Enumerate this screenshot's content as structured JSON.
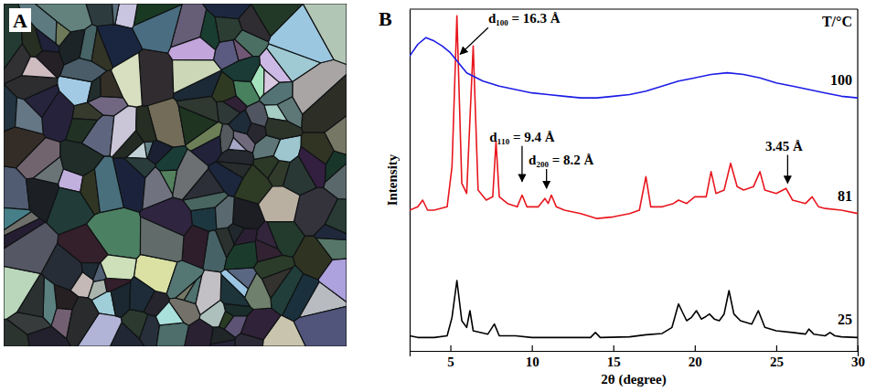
{
  "panel_a": {
    "label": "A"
  },
  "chart_data": {
    "type": "line",
    "label": "B",
    "x_label": "2θ (degree)",
    "y_label": "Intensity",
    "legend_title": "T/°C",
    "xlim": [
      2.5,
      30
    ],
    "xticks": [
      5,
      10,
      15,
      20,
      25,
      30
    ],
    "ylim": [
      0,
      102
    ],
    "tick_labels": "x",
    "series": [
      {
        "name": "25",
        "color": "#000000",
        "x": [
          2.5,
          3,
          4,
          4.8,
          5.1,
          5.4,
          5.7,
          6.0,
          6.2,
          6.4,
          7.3,
          7.7,
          8.0,
          9,
          10,
          12,
          13.6,
          13.9,
          14.2,
          16,
          17,
          18,
          18.6,
          19,
          19.2,
          19.5,
          19.8,
          20.1,
          20.4,
          20.6,
          20.9,
          21.2,
          21.5,
          21.8,
          22.1,
          22.4,
          22.8,
          23.5,
          23.9,
          24.3,
          25,
          26,
          26.8,
          27,
          27.3,
          28,
          28.3,
          28.6,
          29,
          30
        ],
        "values": [
          4.5,
          4,
          4,
          4.5,
          10,
          21,
          9,
          7,
          12,
          6,
          5,
          8,
          4.5,
          4.5,
          4,
          4,
          4,
          5.5,
          4,
          4.2,
          4.8,
          5.2,
          7,
          14,
          12,
          9,
          10,
          12,
          9.5,
          10,
          11,
          9.5,
          9,
          11,
          18,
          11,
          9,
          8,
          12,
          7,
          6,
          5.5,
          5,
          6.5,
          5,
          4.5,
          5.5,
          4.5,
          4.2,
          4
        ]
      },
      {
        "name": "81",
        "color": "#e8161e",
        "x": [
          2.5,
          3,
          3.3,
          3.6,
          4,
          4.8,
          5.1,
          5.4,
          5.7,
          6.0,
          6.4,
          6.7,
          7.2,
          7.6,
          7.8,
          8.0,
          8.5,
          9.1,
          9.4,
          9.7,
          10.4,
          10.8,
          11.0,
          11.2,
          11.5,
          12,
          13,
          14,
          15,
          16,
          16.6,
          17.0,
          17.3,
          18,
          18.7,
          19,
          19.5,
          20,
          20.7,
          21.0,
          21.3,
          21.8,
          22.2,
          22.6,
          23,
          23.6,
          24.0,
          24.3,
          25,
          25.6,
          26,
          26.8,
          27.2,
          27.6,
          28,
          29,
          30
        ],
        "values": [
          42,
          43,
          45,
          42,
          42,
          43,
          55,
          100,
          50,
          47,
          91,
          48,
          45,
          46,
          62.5,
          46,
          44,
          43,
          46.5,
          43,
          43,
          45.5,
          44,
          46.5,
          43,
          42,
          41,
          39.5,
          40,
          41,
          42,
          52,
          43,
          43,
          44,
          45,
          44,
          46,
          46,
          53.5,
          47,
          48,
          56,
          49,
          48,
          49,
          53.5,
          48,
          47,
          48.5,
          45,
          44,
          46,
          43,
          42.5,
          42,
          41
        ]
      },
      {
        "name": "100",
        "color": "#1c1ce6",
        "x": [
          2.5,
          3,
          3.5,
          4,
          4.5,
          5,
          5.5,
          6,
          7,
          8,
          9,
          10,
          11,
          12,
          13,
          14,
          15,
          16,
          17,
          18,
          19,
          20,
          21,
          22,
          23,
          24,
          25,
          26,
          27,
          28,
          29,
          30
        ],
        "values": [
          88,
          91.5,
          93.5,
          92.5,
          91,
          89,
          86,
          83,
          80.5,
          79,
          78,
          77,
          76.5,
          76,
          75.5,
          75.5,
          76,
          76.5,
          77.5,
          79,
          80.5,
          81.5,
          82.5,
          83,
          82.5,
          81.5,
          80,
          79,
          78,
          77,
          76,
          75.5
        ]
      }
    ],
    "annotations": [
      {
        "text": "d₁₀₀ = 16.3 Å",
        "x": 5.6,
        "y": 88
      },
      {
        "text": "d₁₁₀ = 9.4 Å",
        "x": 9.4,
        "y": 50
      },
      {
        "text": "d₂₀₀ = 8.2 Å",
        "x": 10.9,
        "y": 48
      },
      {
        "text": "3.45 Å",
        "x": 25.7,
        "y": 49.5
      }
    ]
  }
}
